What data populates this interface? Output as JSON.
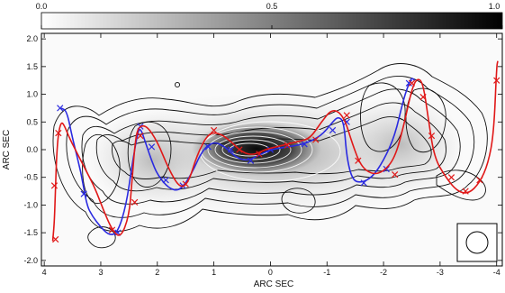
{
  "chart_data": {
    "type": "scatter",
    "title": "",
    "xlabel": "ARC SEC",
    "ylabel": "ARC SEC",
    "xlim": [
      4.05,
      -4.1
    ],
    "ylim": [
      -2.1,
      2.1
    ],
    "x_ticks": [
      4,
      3,
      2,
      1,
      0,
      -1,
      -2,
      -3,
      -4
    ],
    "x_tick_labels": [
      "4",
      "3",
      "2",
      "1",
      "0",
      "-1",
      "-2",
      "-3",
      "-4"
    ],
    "y_ticks": [
      2.0,
      1.5,
      1.0,
      0.5,
      0.0,
      -0.5,
      -1.0,
      -1.5,
      -2.0
    ],
    "y_tick_labels": [
      "2.0",
      "1.5",
      "1.0",
      "0.5",
      "0.0",
      "-0.5",
      "-1.0",
      "-1.5",
      "-2.0"
    ],
    "colorbar": {
      "ticks": [
        0.0,
        0.5,
        1.0
      ],
      "tick_labels": [
        "0.0",
        "0.5",
        "1.0"
      ],
      "colors": [
        "#ffffff",
        "#000000"
      ]
    },
    "grid": false,
    "colors": {
      "blue": "#2a2ae0",
      "red": "#e01818",
      "contour_dark": "#111111",
      "contour_light": "#ffffff"
    },
    "series": [
      {
        "color": "#2a2ae0",
        "x": [
          3.7,
          3.6,
          3.5,
          3.35,
          3.25,
          3.15,
          3.0,
          2.85,
          2.7,
          2.55,
          2.45,
          2.35,
          2.3,
          2.2,
          2.1,
          2.0,
          1.8,
          1.6,
          1.4,
          1.2,
          1.0,
          0.8,
          0.6,
          0.4,
          0.2,
          0.0,
          -0.3,
          -0.6,
          -0.9,
          -1.1,
          -1.2,
          -1.3,
          -1.35,
          -1.45,
          -1.6,
          -1.8,
          -2.0,
          -2.2,
          -2.35,
          -2.45,
          -2.5,
          -2.55
        ],
        "y": [
          0.75,
          0.7,
          0.2,
          -0.4,
          -1.0,
          -1.2,
          -1.4,
          -1.55,
          -1.5,
          -1.0,
          -0.3,
          0.3,
          0.4,
          0.1,
          -0.2,
          -0.45,
          -0.7,
          -0.75,
          -0.45,
          0.0,
          0.15,
          0.05,
          -0.15,
          -0.2,
          -0.1,
          0.0,
          0.05,
          0.1,
          0.25,
          0.5,
          0.6,
          0.5,
          -0.15,
          -0.55,
          -0.6,
          -0.5,
          -0.2,
          0.25,
          0.9,
          1.2,
          1.3,
          1.25
        ],
        "markers_x": [
          3.72,
          3.3,
          2.7,
          2.3,
          2.1,
          1.85,
          1.55,
          1.1,
          0.7,
          0.35,
          0.0,
          -0.6,
          -1.1,
          -1.35,
          -1.65,
          -2.05,
          -2.45
        ],
        "markers_y": [
          0.75,
          -0.8,
          -1.5,
          0.42,
          0.05,
          -0.55,
          -0.65,
          0.05,
          0.0,
          -0.2,
          0.0,
          0.1,
          0.35,
          0.5,
          -0.6,
          -0.35,
          1.2
        ]
      },
      {
        "color": "#e01818",
        "x": [
          3.85,
          3.82,
          3.8,
          3.78,
          3.75,
          3.7,
          3.65,
          3.55,
          3.4,
          3.25,
          3.1,
          2.95,
          2.8,
          2.65,
          2.5,
          2.45,
          2.4,
          2.35,
          2.2,
          2.0,
          1.8,
          1.6,
          1.45,
          1.3,
          1.1,
          0.9,
          0.7,
          0.5,
          0.3,
          0.1,
          -0.1,
          -0.3,
          -0.5,
          -0.7,
          -0.9,
          -1.1,
          -1.3,
          -1.45,
          -1.6,
          -1.8,
          -2.0,
          -2.2,
          -2.35,
          -2.5,
          -2.6,
          -2.7,
          -2.8,
          -2.9,
          -3.1,
          -3.3,
          -3.5,
          -3.7,
          -3.85,
          -3.95,
          -4.0,
          -4.02
        ],
        "y": [
          -1.65,
          -1.3,
          -0.65,
          -0.1,
          0.3,
          0.5,
          0.45,
          0.2,
          -0.1,
          -0.4,
          -0.7,
          -1.1,
          -1.45,
          -1.6,
          -1.2,
          -0.6,
          0.05,
          0.4,
          0.45,
          0.15,
          -0.35,
          -0.7,
          -0.6,
          -0.1,
          0.3,
          0.3,
          0.15,
          -0.05,
          -0.1,
          0.0,
          0.05,
          0.1,
          0.15,
          0.2,
          0.5,
          0.75,
          0.6,
          0.1,
          -0.3,
          -0.45,
          -0.4,
          -0.15,
          0.4,
          1.1,
          1.3,
          1.2,
          0.5,
          -0.15,
          -0.5,
          -0.75,
          -0.8,
          -0.6,
          -0.25,
          0.3,
          1.5,
          1.6
        ],
        "markers_x": [
          3.8,
          3.82,
          3.75,
          2.8,
          2.4,
          2.3,
          1.5,
          1.0,
          0.55,
          0.2,
          -0.3,
          -0.8,
          -1.35,
          -1.55,
          -2.2,
          -2.5,
          -2.7,
          -2.85,
          -3.2,
          -3.45,
          -3.7,
          -4.0
        ],
        "markers_y": [
          -1.62,
          -0.65,
          0.3,
          -1.45,
          -0.95,
          0.25,
          -0.62,
          0.35,
          0.0,
          -0.08,
          0.08,
          0.18,
          0.62,
          -0.2,
          -0.45,
          1.2,
          0.95,
          0.25,
          -0.5,
          -0.75,
          -0.55,
          1.25
        ]
      }
    ]
  }
}
